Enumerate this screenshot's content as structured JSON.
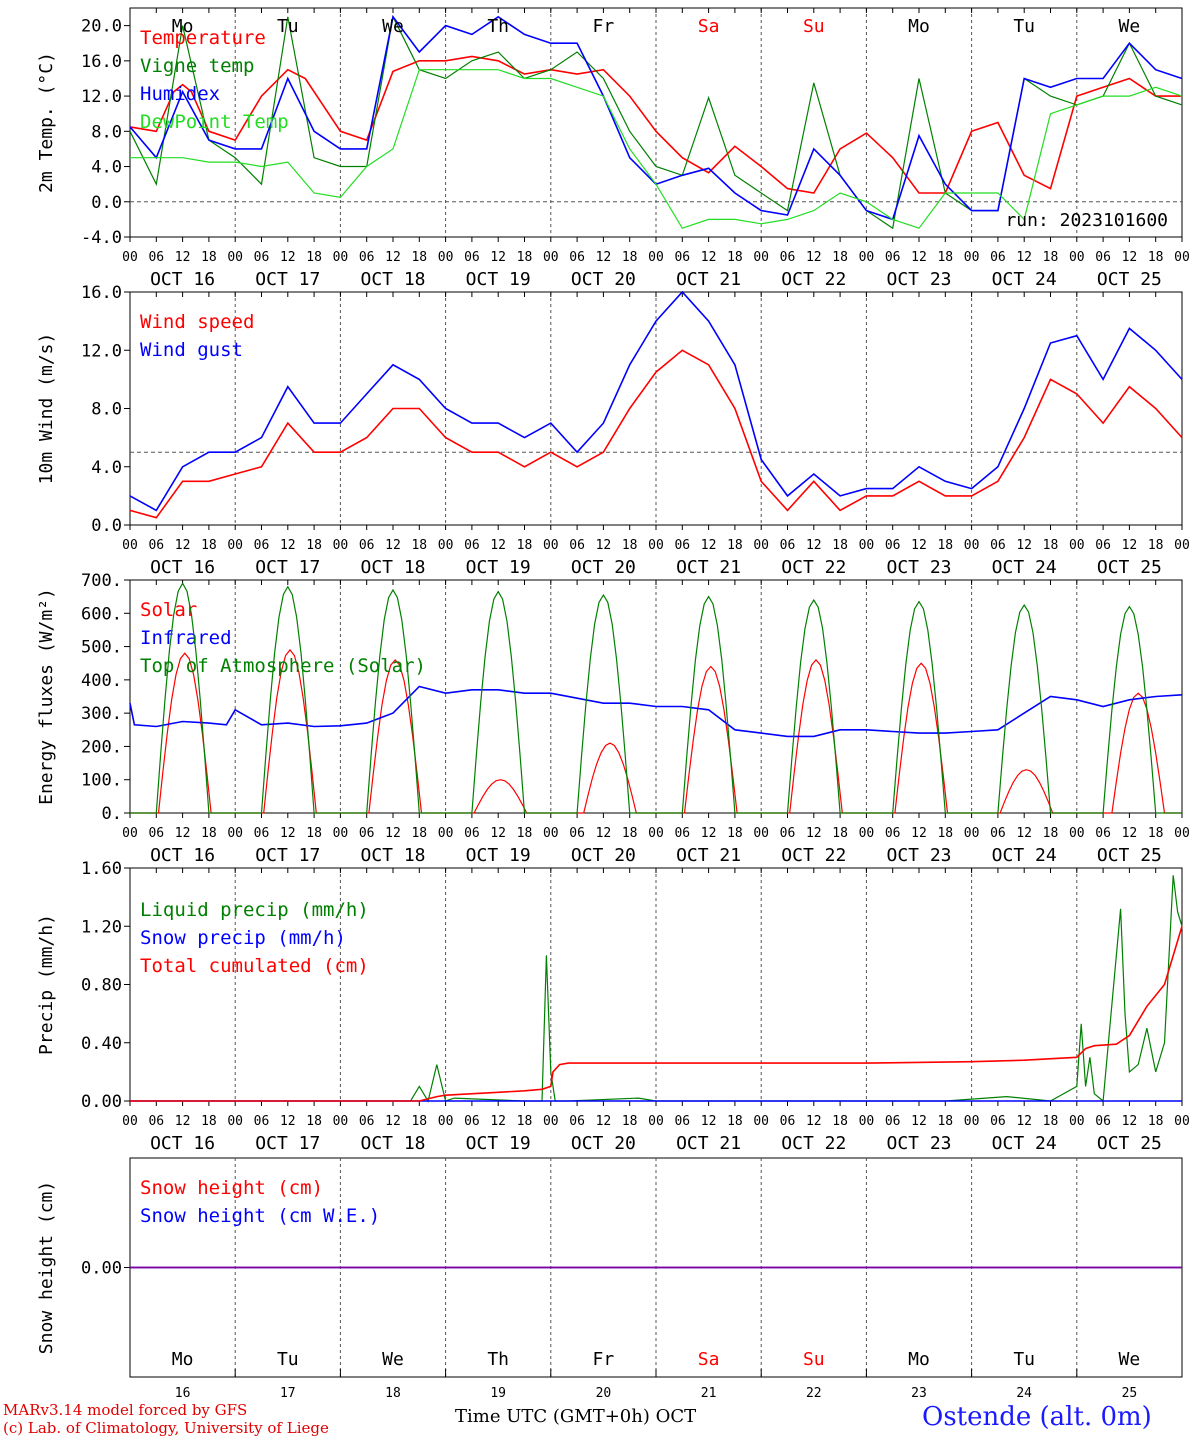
{
  "run_label": "run: 2023101600",
  "station": "Ostende (alt. 0m)",
  "footer": {
    "line1": "MARv3.14 model forced by GFS",
    "line2": "(c) Lab. of Climatology, University of Liege"
  },
  "time_axis_label": "Time UTC (GMT+0h)",
  "month_label": "OCT",
  "days": [
    "OCT 16",
    "OCT 17",
    "OCT 18",
    "OCT 19",
    "OCT 20",
    "OCT 21",
    "OCT 22",
    "OCT 23",
    "OCT 24",
    "OCT 25"
  ],
  "day_numbers": [
    "16",
    "17",
    "18",
    "19",
    "20",
    "21",
    "22",
    "23",
    "24",
    "25"
  ],
  "weekdays": [
    "Mo",
    "Tu",
    "We",
    "Th",
    "Fr",
    "Sa",
    "Su",
    "Mo",
    "Tu",
    "We"
  ],
  "weekday_colors": [
    "#000000",
    "#000000",
    "#000000",
    "#000000",
    "#000000",
    "#ff0000",
    "#ff0000",
    "#000000",
    "#000000",
    "#000000"
  ],
  "hour_ticks": [
    "00",
    "06",
    "12",
    "18"
  ],
  "colors": {
    "red": "#ff0000",
    "blue": "#0000ff",
    "darkgreen": "#008000",
    "lightgreen": "#22dd22",
    "purple": "#8000a0"
  },
  "chart_data": [
    {
      "type": "line",
      "ylabel": "2m Temp. (°C)",
      "ylim": [
        -4,
        22
      ],
      "yticks": [
        "-4.0",
        "0.0",
        "4.0",
        "8.0",
        "12.0",
        "16.0",
        "20.0"
      ],
      "yticks_values": [
        -4,
        0,
        4,
        8,
        12,
        16,
        20
      ],
      "reference_line": 0,
      "x_unit": "hours since OCT 16 00 UTC",
      "series": [
        {
          "name": "Temperature",
          "color": "red",
          "x": [
            0,
            6,
            10,
            12,
            14,
            18,
            24,
            30,
            36,
            40,
            48,
            54,
            60,
            66,
            72,
            78,
            84,
            90,
            96,
            102,
            108,
            114,
            120,
            126,
            132,
            138,
            144,
            150,
            156,
            162,
            168,
            174,
            180,
            186,
            192,
            198,
            204,
            210,
            216,
            222,
            228,
            234,
            240
          ],
          "y": [
            8.5,
            8,
            12.5,
            13.3,
            12.5,
            8,
            7,
            12,
            15,
            14,
            8,
            7,
            14.8,
            16,
            16,
            16.5,
            16,
            14.5,
            15,
            14.5,
            15,
            12,
            8,
            5,
            3.3,
            6.3,
            4,
            1.5,
            1,
            6,
            7.8,
            5,
            1,
            1,
            8,
            9,
            3,
            1.5,
            12,
            13,
            14,
            12,
            12
          ]
        },
        {
          "name": "Vigne temp",
          "color": "darkgreen",
          "x": [
            0,
            6,
            12,
            18,
            24,
            30,
            36,
            42,
            48,
            54,
            60,
            66,
            72,
            78,
            84,
            90,
            96,
            102,
            108,
            114,
            120,
            126,
            132,
            138,
            144,
            150,
            156,
            162,
            168,
            174,
            180,
            186,
            192,
            198,
            204,
            210,
            216,
            222,
            228,
            234,
            240
          ],
          "y": [
            8,
            2,
            20,
            7,
            5,
            2,
            21,
            5,
            4,
            4,
            21,
            15,
            14,
            16,
            17,
            14,
            15,
            17,
            14,
            8,
            4,
            3,
            11.8,
            3,
            1,
            -1,
            13.5,
            3,
            -1,
            -3,
            14,
            1,
            -1,
            -1,
            14,
            12,
            11,
            12,
            18,
            12,
            11
          ]
        },
        {
          "name": "Humidex",
          "color": "blue",
          "x": [
            0,
            6,
            12,
            18,
            24,
            30,
            36,
            42,
            48,
            54,
            60,
            66,
            72,
            78,
            84,
            90,
            96,
            102,
            108,
            114,
            120,
            126,
            132,
            138,
            144,
            150,
            156,
            162,
            168,
            174,
            180,
            186,
            192,
            198,
            204,
            210,
            216,
            222,
            228,
            234,
            240
          ],
          "y": [
            8.5,
            5,
            12.5,
            7,
            6,
            6,
            14,
            8,
            6,
            6,
            21,
            17,
            20,
            19,
            21,
            19,
            18,
            18,
            12,
            5,
            2,
            3,
            3.8,
            1,
            -1,
            -1.5,
            6,
            3,
            -1,
            -2,
            7.5,
            2,
            -1,
            -1,
            14,
            13,
            14,
            14,
            18,
            15,
            14
          ]
        },
        {
          "name": "DewPoint Temp",
          "color": "lightgreen",
          "x": [
            0,
            12,
            18,
            24,
            30,
            36,
            42,
            48,
            54,
            60,
            66,
            72,
            78,
            84,
            90,
            96,
            102,
            108,
            114,
            120,
            126,
            132,
            138,
            144,
            150,
            156,
            162,
            168,
            174,
            180,
            186,
            192,
            198,
            204,
            210,
            216,
            222,
            228,
            234,
            240
          ],
          "y": [
            5,
            5,
            4.5,
            4.5,
            4,
            4.5,
            1,
            0.5,
            4,
            6,
            15,
            15,
            15,
            15,
            14,
            14,
            13,
            12,
            6,
            2,
            -3,
            -2,
            -2,
            -2.5,
            -2,
            -1,
            1,
            0,
            -2,
            -3,
            1,
            1,
            1,
            -2,
            10,
            11,
            12,
            12,
            13,
            12
          ]
        }
      ]
    },
    {
      "type": "line",
      "ylabel": "10m Wind (m/s)",
      "ylim": [
        0,
        16
      ],
      "yticks": [
        "0.0",
        "4.0",
        "8.0",
        "12.0",
        "16.0"
      ],
      "yticks_values": [
        0,
        4,
        8,
        12,
        16
      ],
      "reference_line": 5,
      "x_unit": "hours since OCT 16 00 UTC",
      "series": [
        {
          "name": "Wind speed",
          "color": "red",
          "x": [
            0,
            6,
            12,
            18,
            24,
            30,
            36,
            42,
            48,
            54,
            60,
            66,
            72,
            78,
            84,
            90,
            96,
            102,
            108,
            114,
            120,
            126,
            132,
            138,
            144,
            150,
            156,
            162,
            168,
            174,
            180,
            186,
            192,
            198,
            204,
            210,
            216,
            222,
            228,
            234,
            240
          ],
          "y": [
            1,
            0.5,
            3,
            3,
            3.5,
            4,
            7,
            5,
            5,
            6,
            8,
            8,
            6,
            5,
            5,
            4,
            5,
            4,
            5,
            8,
            10.5,
            12,
            11,
            8,
            3,
            1,
            3,
            1,
            2,
            2,
            3,
            2,
            2,
            3,
            6,
            10,
            9,
            7,
            9.5,
            8,
            6
          ]
        },
        {
          "name": "Wind gust",
          "color": "blue",
          "x": [
            0,
            6,
            12,
            18,
            24,
            30,
            36,
            42,
            48,
            54,
            60,
            66,
            72,
            78,
            84,
            90,
            96,
            102,
            108,
            114,
            120,
            126,
            132,
            138,
            144,
            150,
            156,
            162,
            168,
            174,
            180,
            186,
            192,
            198,
            204,
            210,
            216,
            222,
            228,
            234,
            240
          ],
          "y": [
            2,
            1,
            4,
            5,
            5,
            6,
            9.5,
            7,
            7,
            9,
            11,
            10,
            8,
            7,
            7,
            6,
            7,
            5,
            7,
            11,
            14,
            16,
            14,
            11,
            4.5,
            2,
            3.5,
            2,
            2.5,
            2.5,
            4,
            3,
            2.5,
            4,
            8,
            12.5,
            13,
            10,
            13.5,
            12,
            10
          ]
        }
      ]
    },
    {
      "type": "line",
      "ylabel": "Energy fluxes (W/m²)",
      "ylim": [
        0,
        700
      ],
      "yticks": [
        "0.",
        "100.",
        "200.",
        "300.",
        "400.",
        "500.",
        "600.",
        "700."
      ],
      "yticks_values": [
        0,
        100,
        200,
        300,
        400,
        500,
        600,
        700
      ],
      "x_unit": "hours since OCT 16 00 UTC",
      "series": [
        {
          "name": "Solar",
          "color": "red",
          "peaks": [
            {
              "day": 0,
              "peak": 480,
              "noon": 12.5
            },
            {
              "day": 1,
              "peak": 490,
              "noon": 12.5
            },
            {
              "day": 2,
              "peak": 460,
              "noon": 12.5
            },
            {
              "day": 3,
              "peak": 100,
              "noon": 12.5
            },
            {
              "day": 4,
              "peak": 210,
              "noon": 13.5
            },
            {
              "day": 5,
              "peak": 440,
              "noon": 12.5
            },
            {
              "day": 6,
              "peak": 460,
              "noon": 12.5
            },
            {
              "day": 7,
              "peak": 450,
              "noon": 12.5
            },
            {
              "day": 8,
              "peak": 130,
              "noon": 12.5
            },
            {
              "day": 9,
              "peak": 360,
              "noon": 14.0
            }
          ]
        },
        {
          "name": "Infrared",
          "color": "blue",
          "x": [
            0,
            1,
            6,
            12,
            18,
            22,
            24,
            30,
            36,
            42,
            48,
            54,
            60,
            66,
            72,
            78,
            84,
            90,
            96,
            102,
            108,
            114,
            120,
            126,
            132,
            138,
            144,
            150,
            156,
            162,
            168,
            174,
            180,
            186,
            192,
            198,
            204,
            210,
            216,
            222,
            228,
            234,
            240
          ],
          "y": [
            330,
            265,
            260,
            275,
            270,
            265,
            310,
            265,
            270,
            260,
            262,
            270,
            300,
            380,
            360,
            370,
            370,
            360,
            360,
            345,
            330,
            330,
            320,
            320,
            310,
            250,
            240,
            230,
            230,
            250,
            250,
            245,
            240,
            240,
            245,
            250,
            300,
            350,
            340,
            320,
            340,
            350,
            355
          ]
        },
        {
          "name": "Top of Atmosphere (Solar)",
          "color": "darkgreen",
          "peaks": [
            {
              "day": 0,
              "peak": 690,
              "noon": 12
            },
            {
              "day": 1,
              "peak": 680,
              "noon": 12
            },
            {
              "day": 2,
              "peak": 670,
              "noon": 12
            },
            {
              "day": 3,
              "peak": 665,
              "noon": 12
            },
            {
              "day": 4,
              "peak": 655,
              "noon": 12
            },
            {
              "day": 5,
              "peak": 650,
              "noon": 12
            },
            {
              "day": 6,
              "peak": 640,
              "noon": 12
            },
            {
              "day": 7,
              "peak": 635,
              "noon": 12
            },
            {
              "day": 8,
              "peak": 625,
              "noon": 12
            },
            {
              "day": 9,
              "peak": 620,
              "noon": 12
            }
          ]
        }
      ]
    },
    {
      "type": "line",
      "ylabel": "Precip (mm/h)",
      "ylim": [
        0,
        1.6
      ],
      "yticks": [
        "0.00",
        "0.40",
        "0.80",
        "1.20",
        "1.60"
      ],
      "yticks_values": [
        0,
        0.4,
        0.8,
        1.2,
        1.6
      ],
      "x_unit": "hours since OCT 16 00 UTC",
      "series": [
        {
          "name": "Liquid precip (mm/h)",
          "color": "darkgreen",
          "x": [
            0,
            64,
            66,
            68,
            70,
            72,
            74,
            90,
            94,
            95,
            96,
            97,
            98,
            100,
            116,
            120,
            186,
            200,
            210,
            216,
            217,
            218,
            219,
            220,
            222,
            226,
            227,
            228,
            230,
            232,
            234,
            236,
            238,
            239,
            240
          ],
          "y": [
            0,
            0,
            0.1,
            0,
            0.25,
            0,
            0.02,
            0,
            0,
            1.0,
            0.2,
            0,
            0,
            0,
            0.02,
            0,
            0,
            0.03,
            0,
            0.1,
            0.53,
            0.1,
            0.3,
            0.05,
            0,
            1.32,
            0.6,
            0.2,
            0.25,
            0.5,
            0.2,
            0.4,
            1.55,
            1.3,
            1.2
          ]
        },
        {
          "name": "Snow precip (mm/h)",
          "color": "blue",
          "x": [
            0,
            240
          ],
          "y": [
            0,
            0
          ]
        },
        {
          "name": "Total cumulated (cm)",
          "color": "red",
          "x": [
            0,
            66,
            70,
            72,
            84,
            90,
            94,
            96,
            96.5,
            98,
            100,
            120,
            144,
            168,
            192,
            204,
            216,
            218,
            220,
            225,
            228,
            232,
            236,
            240
          ],
          "y": [
            0,
            0,
            0.03,
            0.04,
            0.06,
            0.07,
            0.08,
            0.1,
            0.2,
            0.25,
            0.26,
            0.26,
            0.26,
            0.26,
            0.27,
            0.28,
            0.3,
            0.36,
            0.38,
            0.39,
            0.45,
            0.65,
            0.8,
            1.2
          ]
        }
      ]
    },
    {
      "type": "line",
      "ylabel": "Snow height (cm)",
      "ylim": [
        -1,
        1
      ],
      "yticks": [
        "0.00"
      ],
      "yticks_values": [
        0
      ],
      "x_unit": "hours since OCT 16 00 UTC",
      "series": [
        {
          "name": "Snow height (cm)",
          "color": "red",
          "x": [
            0,
            240
          ],
          "y": [
            0,
            0
          ]
        },
        {
          "name": "Snow height (cm W.E.)",
          "color": "blue",
          "x": [
            0,
            240
          ],
          "y": [
            0,
            0
          ]
        }
      ]
    }
  ]
}
